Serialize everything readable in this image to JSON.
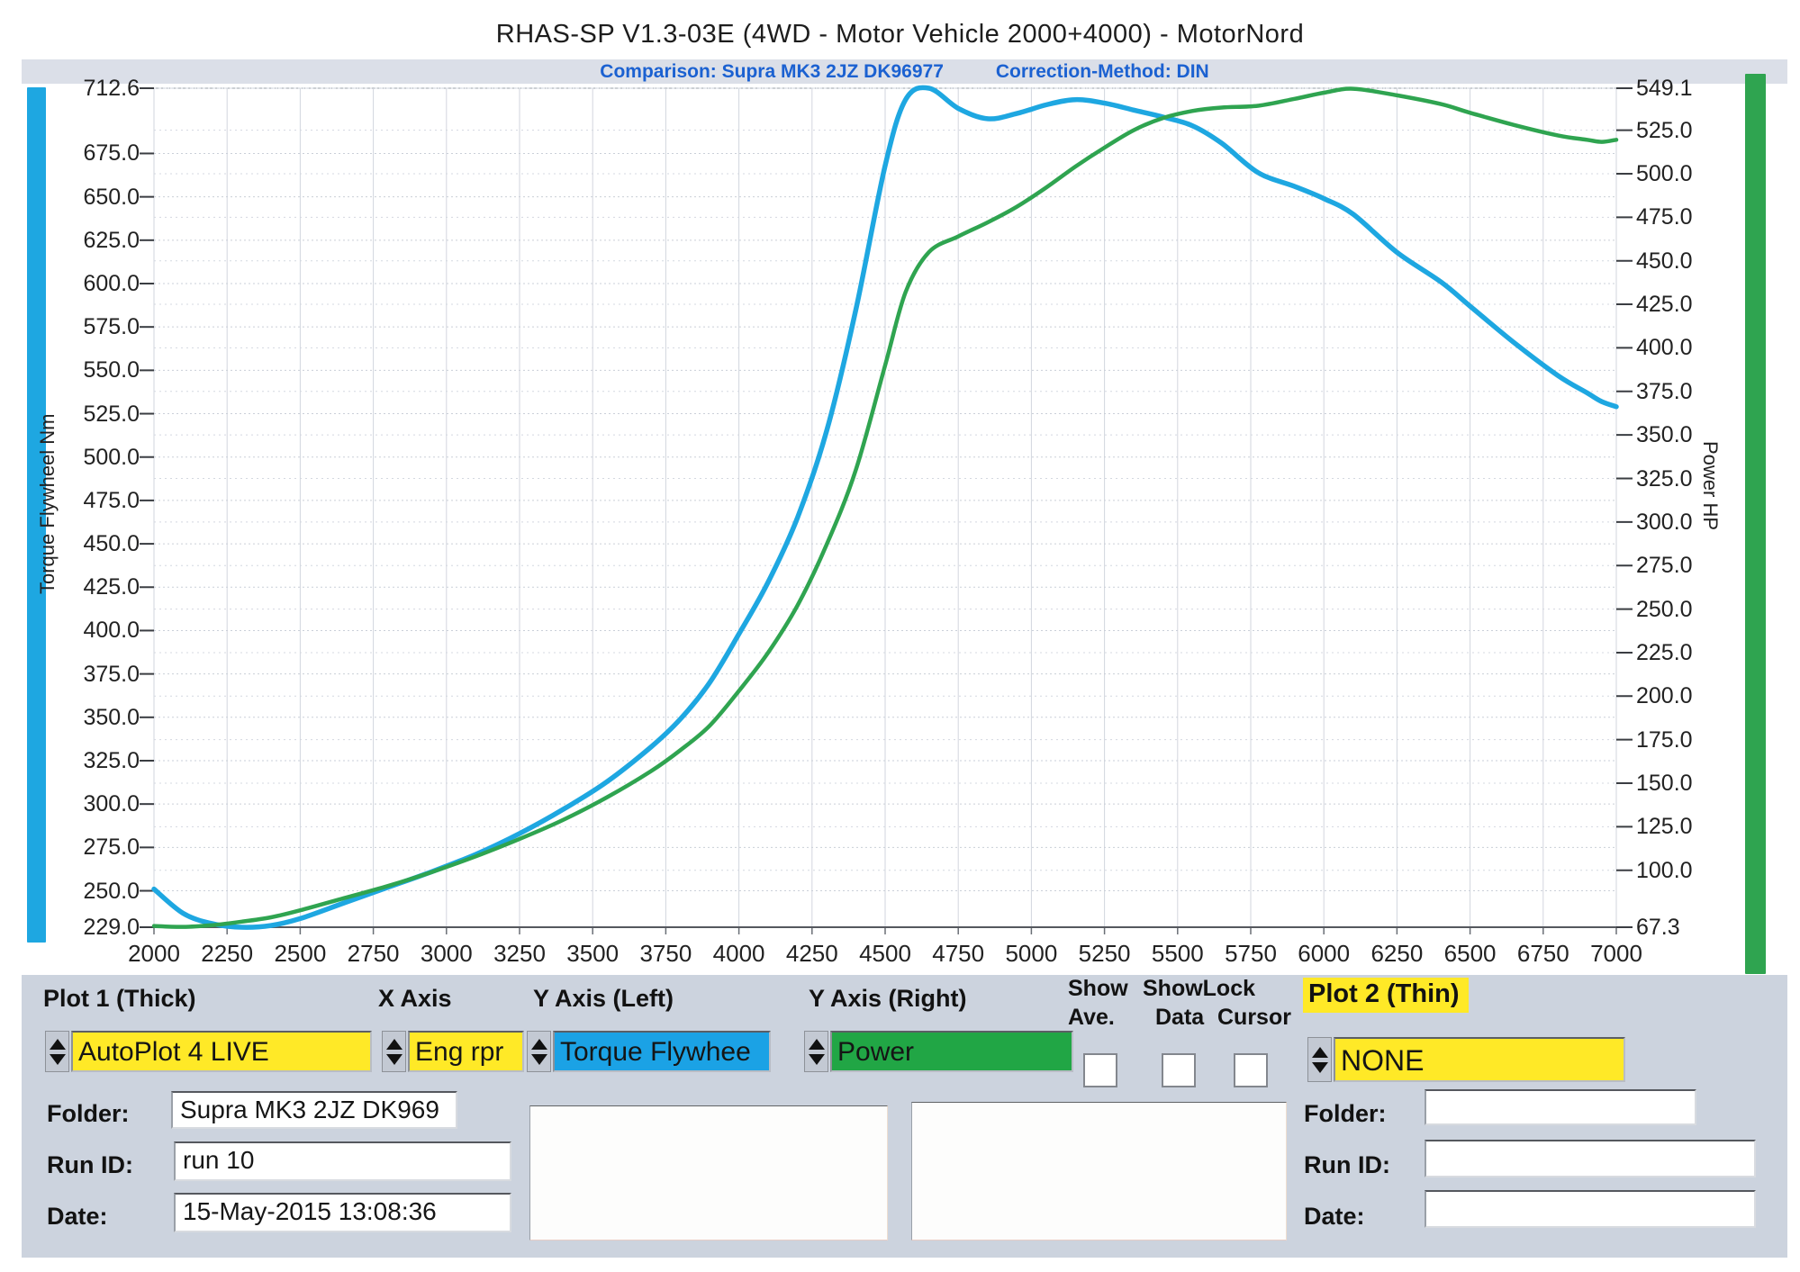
{
  "header": {
    "title": "RHAS-SP V1.3-03E  (4WD - Motor Vehicle 2000+4000) - MotorNord",
    "comparison": "Comparison: Supra MK3 2JZ DK96977",
    "correction": "Correction-Method: DIN"
  },
  "chart_data": {
    "type": "line",
    "title": "RHAS-SP V1.3-03E  (4WD - Motor Vehicle 2000+4000) - MotorNord",
    "xlabel": "Eng rpm",
    "grid": true,
    "x_range": [
      2000,
      7000
    ],
    "x_tick_labels": [
      "2000",
      "2250",
      "2500",
      "2750",
      "3000",
      "3250",
      "3500",
      "3750",
      "4000",
      "4250",
      "4500",
      "4750",
      "5000",
      "5250",
      "5500",
      "5750",
      "6000",
      "6250",
      "6500",
      "6750",
      "7000"
    ],
    "x_tick_values": [
      2000,
      2250,
      2500,
      2750,
      3000,
      3250,
      3500,
      3750,
      4000,
      4250,
      4500,
      4750,
      5000,
      5250,
      5500,
      5750,
      6000,
      6250,
      6500,
      6750,
      7000
    ],
    "left_axis": {
      "label": "Torque Flywheel Nm",
      "min": 229.0,
      "max": 712.6,
      "tick_values": [
        712.6,
        675,
        650,
        625,
        600,
        575,
        550,
        525,
        500,
        475,
        450,
        425,
        400,
        375,
        350,
        325,
        300,
        275,
        250,
        229
      ],
      "tick_labels": [
        "712.6",
        "675.0",
        "650.0",
        "625.0",
        "600.0",
        "575.0",
        "550.0",
        "525.0",
        "500.0",
        "475.0",
        "450.0",
        "425.0",
        "400.0",
        "375.0",
        "350.0",
        "325.0",
        "300.0",
        "275.0",
        "250.0",
        "229.0"
      ]
    },
    "right_axis": {
      "label": "Power HP",
      "min": 67.3,
      "max": 549.1,
      "tick_values": [
        549.1,
        525,
        500,
        475,
        450,
        425,
        400,
        375,
        350,
        325,
        300,
        275,
        250,
        225,
        200,
        175,
        150,
        125,
        100,
        67.3
      ],
      "tick_labels": [
        "549.1",
        "525.0",
        "500.0",
        "475.0",
        "450.0",
        "425.0",
        "400.0",
        "375.0",
        "350.0",
        "325.0",
        "300.0",
        "275.0",
        "250.0",
        "225.0",
        "200.0",
        "175.0",
        "150.0",
        "125.0",
        "100.0",
        "67.3"
      ]
    },
    "x": [
      2000,
      2100,
      2200,
      2300,
      2400,
      2500,
      2650,
      2800,
      2950,
      3100,
      3250,
      3400,
      3550,
      3700,
      3800,
      3900,
      4000,
      4100,
      4200,
      4300,
      4400,
      4500,
      4570,
      4650,
      4750,
      4850,
      4950,
      5050,
      5150,
      5250,
      5350,
      5450,
      5550,
      5650,
      5775,
      5900,
      6000,
      6100,
      6250,
      6400,
      6500,
      6650,
      6800,
      6900,
      6950,
      7000
    ],
    "series": [
      {
        "name": "Torque Flywheel",
        "axis": "left",
        "color": "#1ea7e1",
        "width": 5.5,
        "values": [
          251,
          237,
          231,
          229,
          230,
          234,
          243,
          252,
          261,
          271,
          283,
          297,
          313,
          333,
          349,
          370,
          398,
          428,
          465,
          515,
          585,
          668,
          706,
          712.6,
          701,
          695,
          698,
          703,
          706,
          704,
          700,
          696,
          691,
          681,
          664,
          656,
          649,
          640,
          618,
          601,
          587,
          566,
          547,
          537,
          532,
          529
        ]
      },
      {
        "name": "Power",
        "axis": "right",
        "color": "#2fa450",
        "width": 4.5,
        "values": [
          68,
          67.5,
          68.5,
          70.5,
          73,
          77,
          84,
          91,
          99,
          108,
          118,
          129,
          142,
          157,
          169,
          183,
          203,
          225,
          252,
          287,
          330,
          390,
          432,
          455,
          464,
          472,
          481,
          492,
          504,
          515,
          525,
          532,
          536,
          538,
          539,
          543,
          546.5,
          548.8,
          545,
          540,
          535,
          528,
          522,
          519.5,
          518.3,
          519.5
        ]
      }
    ],
    "peak_torque_nm": 712.6,
    "peak_power_hp": 549.1
  },
  "colors": {
    "torque_accent": "#1ea7e1",
    "power_accent": "#2fa450",
    "highlight_yellow": "#ffe927",
    "panel_bg": "#ccd3de",
    "subtitle_blue": "#1b61d1"
  },
  "panel": {
    "plot1": {
      "header": "Plot 1 (Thick)",
      "value": "AutoPlot 4 LIVE"
    },
    "x_axis": {
      "header": "X Axis",
      "value": "Eng rpr"
    },
    "y_left": {
      "header": "Y Axis (Left)",
      "value": "Torque Flywhee"
    },
    "y_right": {
      "header": "Y Axis (Right)",
      "value": "Power"
    },
    "checks": {
      "show": "Show",
      "ave": "Ave.",
      "showlock": "ShowLock",
      "data": "Data",
      "cursor": "Cursor"
    },
    "plot2": {
      "header": "Plot 2 (Thin)",
      "value": "NONE"
    },
    "left_fields": {
      "folder_label": "Folder:",
      "folder_value": "Supra MK3 2JZ DK969",
      "runid_label": "Run ID:",
      "runid_value": "run 10",
      "date_label": "Date:",
      "date_value": "15-May-2015  13:08:36"
    },
    "right_fields": {
      "folder_label": "Folder:",
      "folder_value": "",
      "runid_label": "Run ID:",
      "runid_value": "",
      "date_label": "Date:",
      "date_value": ""
    }
  }
}
